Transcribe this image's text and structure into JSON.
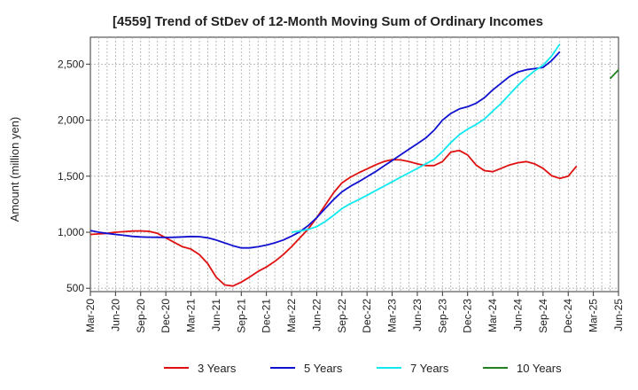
{
  "chart_data": {
    "type": "line",
    "title": "[4559]  Trend of StDev of 12-Month Moving Sum of Ordinary Incomes",
    "ylabel": "Amount (million yen)",
    "xlabel": "",
    "ylim": [
      470,
      2740
    ],
    "yticks": [
      500,
      1000,
      1500,
      2000,
      2500
    ],
    "ytick_labels": [
      "500",
      "1,000",
      "1,500",
      "2,000",
      "2,500"
    ],
    "xlim": [
      0,
      63
    ],
    "xtick_positions": [
      0,
      3,
      6,
      9,
      12,
      15,
      18,
      21,
      24,
      27,
      30,
      33,
      36,
      39,
      42,
      45,
      48,
      51,
      54,
      57,
      60,
      63
    ],
    "xtick_labels": [
      "Mar-20",
      "Jun-20",
      "Sep-20",
      "Dec-20",
      "Mar-21",
      "Jun-21",
      "Sep-21",
      "Dec-21",
      "Mar-22",
      "Jun-22",
      "Sep-22",
      "Dec-22",
      "Mar-23",
      "Jun-23",
      "Sep-23",
      "Dec-23",
      "Mar-24",
      "Jun-24",
      "Sep-24",
      "Dec-24",
      "Mar-25",
      "Jun-25"
    ],
    "grid": true,
    "legend_position": "bottom",
    "series": [
      {
        "name": "3 Years",
        "color": "#e01010",
        "start": 0,
        "values": [
          980,
          985,
          990,
          1000,
          1005,
          1010,
          1012,
          1008,
          990,
          950,
          910,
          870,
          850,
          800,
          720,
          600,
          530,
          520,
          555,
          600,
          650,
          690,
          740,
          800,
          870,
          950,
          1030,
          1130,
          1240,
          1350,
          1440,
          1490,
          1530,
          1565,
          1600,
          1630,
          1648,
          1645,
          1630,
          1610,
          1595,
          1595,
          1630,
          1715,
          1730,
          1690,
          1600,
          1550,
          1540,
          1570,
          1600,
          1620,
          1630,
          1610,
          1570,
          1505,
          1480,
          1500,
          1590
        ]
      },
      {
        "name": "5 Years",
        "color": "#1010d0",
        "start": 0,
        "values": [
          1015,
          1000,
          990,
          980,
          972,
          963,
          958,
          956,
          955,
          953,
          955,
          958,
          962,
          960,
          950,
          930,
          905,
          880,
          860,
          860,
          870,
          885,
          905,
          930,
          965,
          1005,
          1060,
          1130,
          1210,
          1290,
          1360,
          1410,
          1450,
          1495,
          1540,
          1590,
          1640,
          1690,
          1740,
          1790,
          1840,
          1910,
          2000,
          2060,
          2100,
          2120,
          2150,
          2200,
          2270,
          2330,
          2390,
          2430,
          2450,
          2460,
          2470,
          2530,
          2610
        ]
      },
      {
        "name": "7 Years",
        "color": "#10e8f0",
        "start": 24,
        "values": [
          1000,
          1010,
          1025,
          1050,
          1095,
          1150,
          1210,
          1255,
          1290,
          1330,
          1370,
          1410,
          1450,
          1490,
          1530,
          1570,
          1610,
          1650,
          1720,
          1800,
          1870,
          1920,
          1960,
          2010,
          2080,
          2150,
          2230,
          2310,
          2380,
          2440,
          2490,
          2570,
          2680
        ]
      },
      {
        "name": "10 Years",
        "color": "#208020",
        "start": 62,
        "values": [
          2370,
          2450
        ]
      }
    ]
  }
}
